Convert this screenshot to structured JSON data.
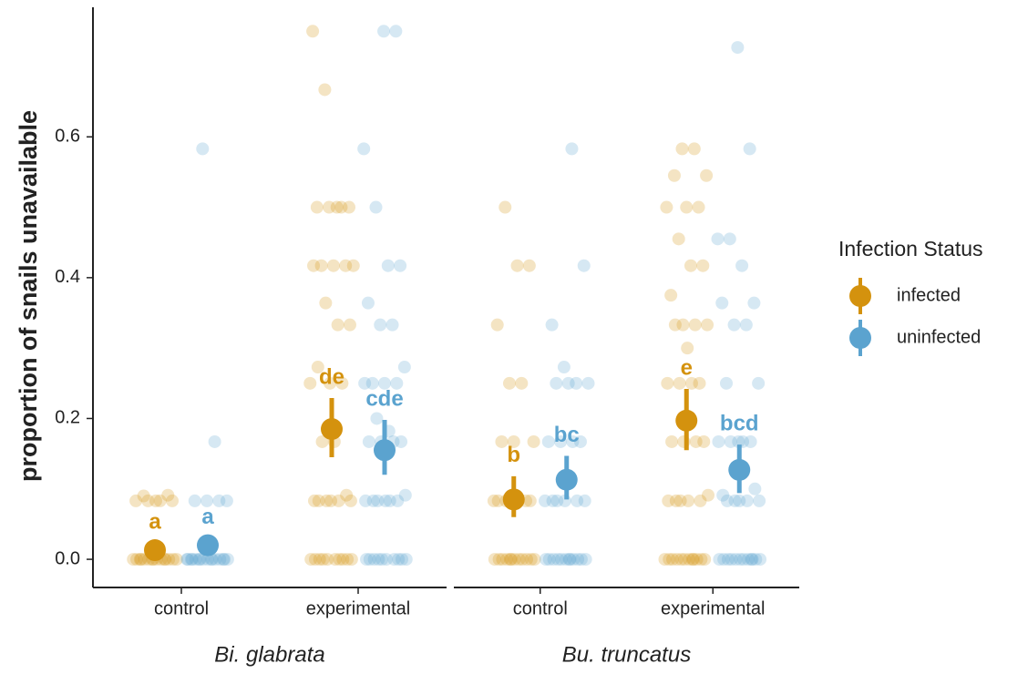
{
  "chart_data": {
    "type": "dot",
    "ylabel": "proportion of snails unavailable",
    "ylim": [
      -0.04,
      0.784
    ],
    "yticks": [
      {
        "value": 0,
        "label": "0.0"
      },
      0.2,
      0.4,
      0.6
    ],
    "facets": [
      "Bi. glabrata",
      "Bu. truncatus"
    ],
    "categories": [
      "control",
      "experimental"
    ],
    "legend_title": "Infection Status",
    "series": [
      {
        "name": "infected",
        "color": "#D4920E",
        "means": [
          0.013,
          0.185,
          0.085,
          0.197
        ],
        "lower": [
          0.005,
          0.145,
          0.06,
          0.155
        ],
        "upper": [
          0.023,
          0.229,
          0.118,
          0.242
        ],
        "letters": [
          "a",
          "de",
          "b",
          "e"
        ],
        "points": [
          [
            0,
            0,
            0,
            0,
            0,
            0,
            0,
            0,
            0,
            0,
            0,
            0,
            0,
            0,
            0,
            0.083,
            0.083,
            0.083,
            0.083,
            0.091,
            0.083,
            0.09
          ],
          [
            0,
            0,
            0,
            0,
            0,
            0,
            0,
            0,
            0,
            0,
            0.083,
            0.083,
            0.083,
            0.083,
            0.083,
            0.083,
            0.091,
            0.167,
            0.167,
            0.25,
            0.25,
            0.25,
            0.273,
            0.333,
            0.333,
            0.364,
            0.417,
            0.417,
            0.417,
            0.417,
            0.417,
            0.5,
            0.5,
            0.5,
            0.5,
            0.5,
            0.667,
            0.75
          ],
          [
            0,
            0,
            0,
            0,
            0,
            0,
            0,
            0,
            0,
            0,
            0,
            0,
            0.083,
            0.083,
            0.083,
            0.083,
            0.083,
            0.083,
            0.167,
            0.167,
            0.167,
            0.25,
            0.25,
            0.333,
            0.417,
            0.417,
            0.5
          ],
          [
            0,
            0,
            0,
            0,
            0,
            0,
            0,
            0,
            0,
            0,
            0,
            0,
            0.083,
            0.083,
            0.083,
            0.083,
            0.083,
            0.091,
            0.167,
            0.167,
            0.167,
            0.167,
            0.25,
            0.25,
            0.25,
            0.25,
            0.3,
            0.333,
            0.333,
            0.333,
            0.333,
            0.375,
            0.417,
            0.417,
            0.455,
            0.5,
            0.5,
            0.5,
            0.545,
            0.545,
            0.583,
            0.583
          ]
        ]
      },
      {
        "name": "uninfected",
        "color": "#5BA3CF",
        "means": [
          0.02,
          0.155,
          0.113,
          0.127
        ],
        "lower": [
          0.01,
          0.12,
          0.085,
          0.094
        ],
        "upper": [
          0.03,
          0.198,
          0.147,
          0.163
        ],
        "letters": [
          "a",
          "cde",
          "bc",
          "bcd"
        ],
        "points": [
          [
            0,
            0,
            0,
            0,
            0,
            0,
            0,
            0,
            0,
            0,
            0,
            0,
            0,
            0,
            0,
            0,
            0.083,
            0.083,
            0.083,
            0.083,
            0.167,
            0.583
          ],
          [
            0,
            0,
            0,
            0,
            0,
            0,
            0,
            0,
            0,
            0,
            0.083,
            0.083,
            0.083,
            0.083,
            0.083,
            0.083,
            0.091,
            0.167,
            0.167,
            0.167,
            0.167,
            0.182,
            0.2,
            0.25,
            0.25,
            0.25,
            0.25,
            0.273,
            0.333,
            0.333,
            0.364,
            0.417,
            0.417,
            0.5,
            0.583,
            0.75,
            0.75
          ],
          [
            0,
            0,
            0,
            0,
            0,
            0,
            0,
            0,
            0,
            0,
            0,
            0,
            0.083,
            0.083,
            0.083,
            0.083,
            0.083,
            0.083,
            0.167,
            0.167,
            0.167,
            0.167,
            0.25,
            0.25,
            0.25,
            0.25,
            0.273,
            0.333,
            0.417,
            0.583
          ],
          [
            0,
            0,
            0,
            0,
            0,
            0,
            0,
            0,
            0,
            0,
            0,
            0,
            0.083,
            0.083,
            0.083,
            0.083,
            0.083,
            0.091,
            0.1,
            0.167,
            0.167,
            0.167,
            0.167,
            0.167,
            0.25,
            0.25,
            0.333,
            0.333,
            0.364,
            0.364,
            0.417,
            0.455,
            0.455,
            0.583,
            0.727
          ]
        ]
      }
    ]
  }
}
